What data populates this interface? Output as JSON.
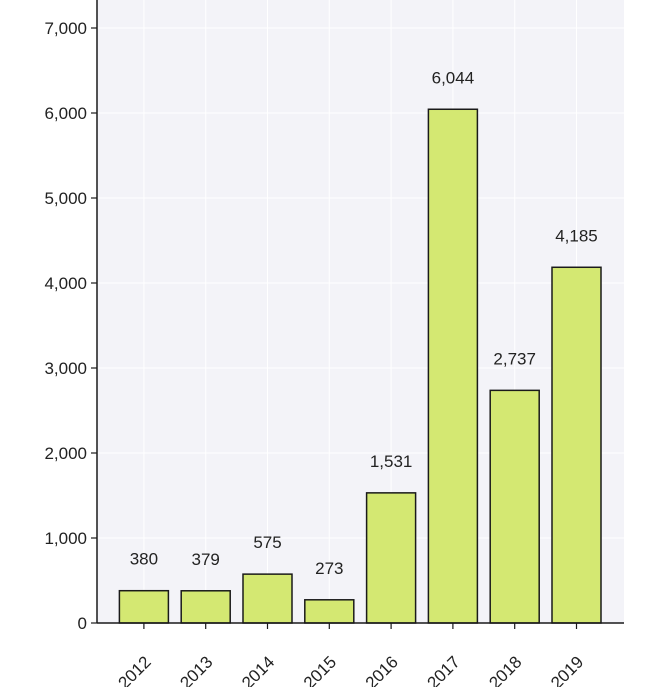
{
  "chart_data": {
    "type": "bar",
    "title": "",
    "xlabel": "",
    "ylabel": "",
    "categories": [
      "2012",
      "2013",
      "2014",
      "2015",
      "2016",
      "2017",
      "2018",
      "2019"
    ],
    "values": [
      380,
      379,
      575,
      273,
      1531,
      6044,
      2737,
      4185
    ],
    "data_labels": [
      "380",
      "379",
      "575",
      "273",
      "1,531",
      "6,044",
      "2,737",
      "4,185"
    ],
    "ylim": [
      0,
      7000
    ],
    "yticks": [
      0,
      1000,
      2000,
      3000,
      4000,
      5000,
      6000,
      7000
    ],
    "ytick_labels": [
      "0",
      "1,000",
      "2,000",
      "3,000",
      "4,000",
      "5,000",
      "6,000",
      "7,000"
    ],
    "grid": true,
    "legend": "none",
    "colors": {
      "bar_fill": "#d4e872",
      "bar_stroke": "#1a1a1a",
      "plot_background": "#f3f3f8",
      "grid": "#ffffff",
      "axis": "#1a1a1a"
    }
  }
}
